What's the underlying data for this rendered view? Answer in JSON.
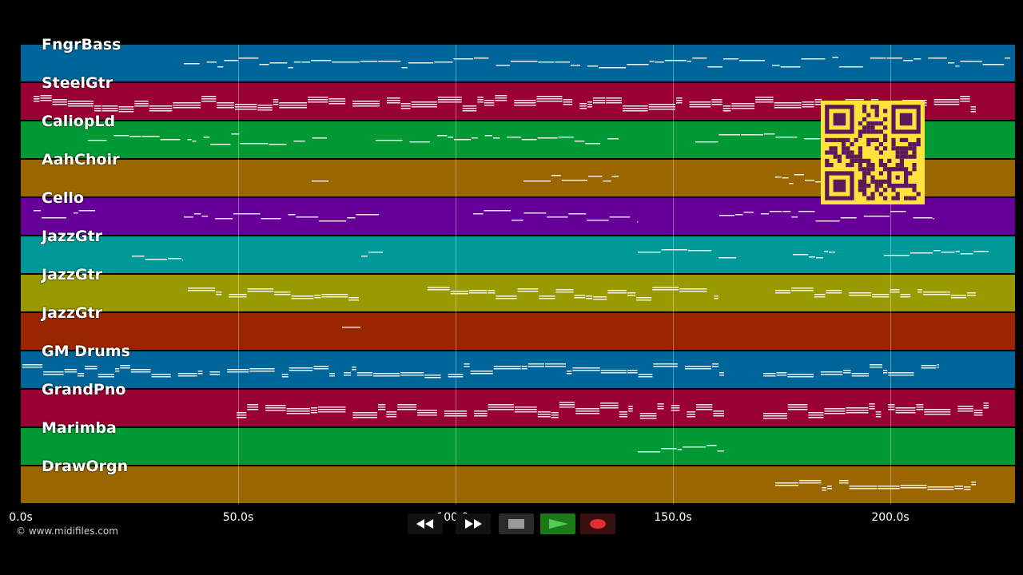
{
  "tracks": [
    {
      "name": "FngrBass",
      "color": "#006599"
    },
    {
      "name": "SteelGtr",
      "color": "#990033"
    },
    {
      "name": "CaliopLd",
      "color": "#009933"
    },
    {
      "name": "AahChoir",
      "color": "#996600"
    },
    {
      "name": "Cello",
      "color": "#660099"
    },
    {
      "name": "JazzGtr",
      "color": "#009999"
    },
    {
      "name": "JazzGtr",
      "color": "#999900"
    },
    {
      "name": "JazzGtr",
      "color": "#992600"
    },
    {
      "name": "GM Drums",
      "color": "#006599"
    },
    {
      "name": "GrandPno",
      "color": "#990033"
    },
    {
      "name": "Marimba",
      "color": "#009933"
    },
    {
      "name": "DrawOrgn",
      "color": "#996600"
    }
  ],
  "timeline": {
    "ticks": [
      "0.0s",
      "50.0s",
      "100.0s",
      "150.0s",
      "200.0s"
    ]
  },
  "copyright": "© www.midifiles.com",
  "transport": {
    "buttons": [
      {
        "name": "rewind-button",
        "icon": "rewind-icon"
      },
      {
        "name": "fast-forward-button",
        "icon": "fast-forward-icon"
      },
      {
        "name": "stop-button",
        "icon": "stop-icon"
      },
      {
        "name": "play-button",
        "icon": "play-icon"
      },
      {
        "name": "record-button",
        "icon": "record-icon"
      }
    ]
  },
  "qr_code": {
    "icon": "qr-code-icon",
    "color": "#ffe23b",
    "fg": "#5a1a5a"
  }
}
